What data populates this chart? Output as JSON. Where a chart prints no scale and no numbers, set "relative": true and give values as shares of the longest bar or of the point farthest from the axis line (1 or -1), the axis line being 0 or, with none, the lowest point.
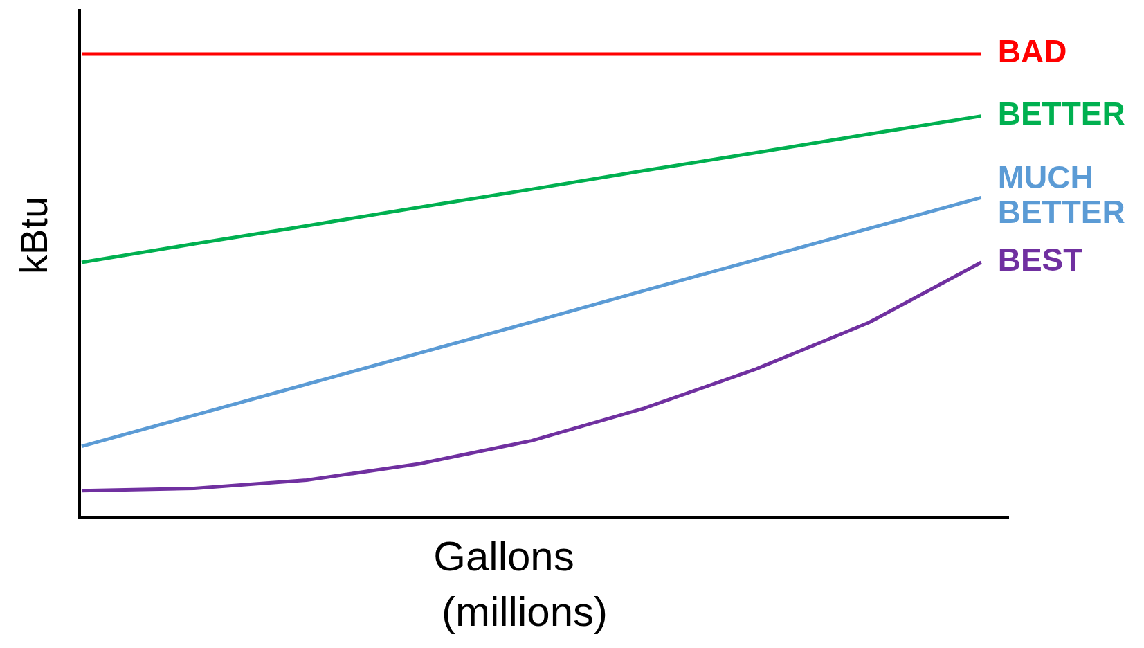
{
  "chart_data": {
    "type": "line",
    "relative": true,
    "xlabel": "Gallons (millions)",
    "ylabel": "kBtu",
    "marker": "none",
    "line_style": "solid",
    "categories": [
      null,
      null,
      null,
      null,
      null,
      null,
      null,
      null,
      null
    ],
    "series": [
      {
        "name": "BAD",
        "color": "#ff0000",
        "values": [
          1,
          1,
          1,
          1,
          1,
          1,
          1,
          1,
          1
        ]
      },
      {
        "name": "BETTER",
        "color": "#00b050",
        "values": [
          0.55,
          0.59,
          0.629,
          0.669,
          0.708,
          0.748,
          0.787,
          0.827,
          0.866
        ]
      },
      {
        "name": "MUCH BETTER",
        "color": "#5b9bd5",
        "values": [
          0.153,
          0.22,
          0.287,
          0.354,
          0.421,
          0.489,
          0.556,
          0.623,
          0.69
        ]
      },
      {
        "name": "BEST",
        "color": "#7030a0",
        "values": [
          0.057,
          0.062,
          0.08,
          0.115,
          0.165,
          0.235,
          0.32,
          0.42,
          0.55
        ]
      }
    ]
  }
}
